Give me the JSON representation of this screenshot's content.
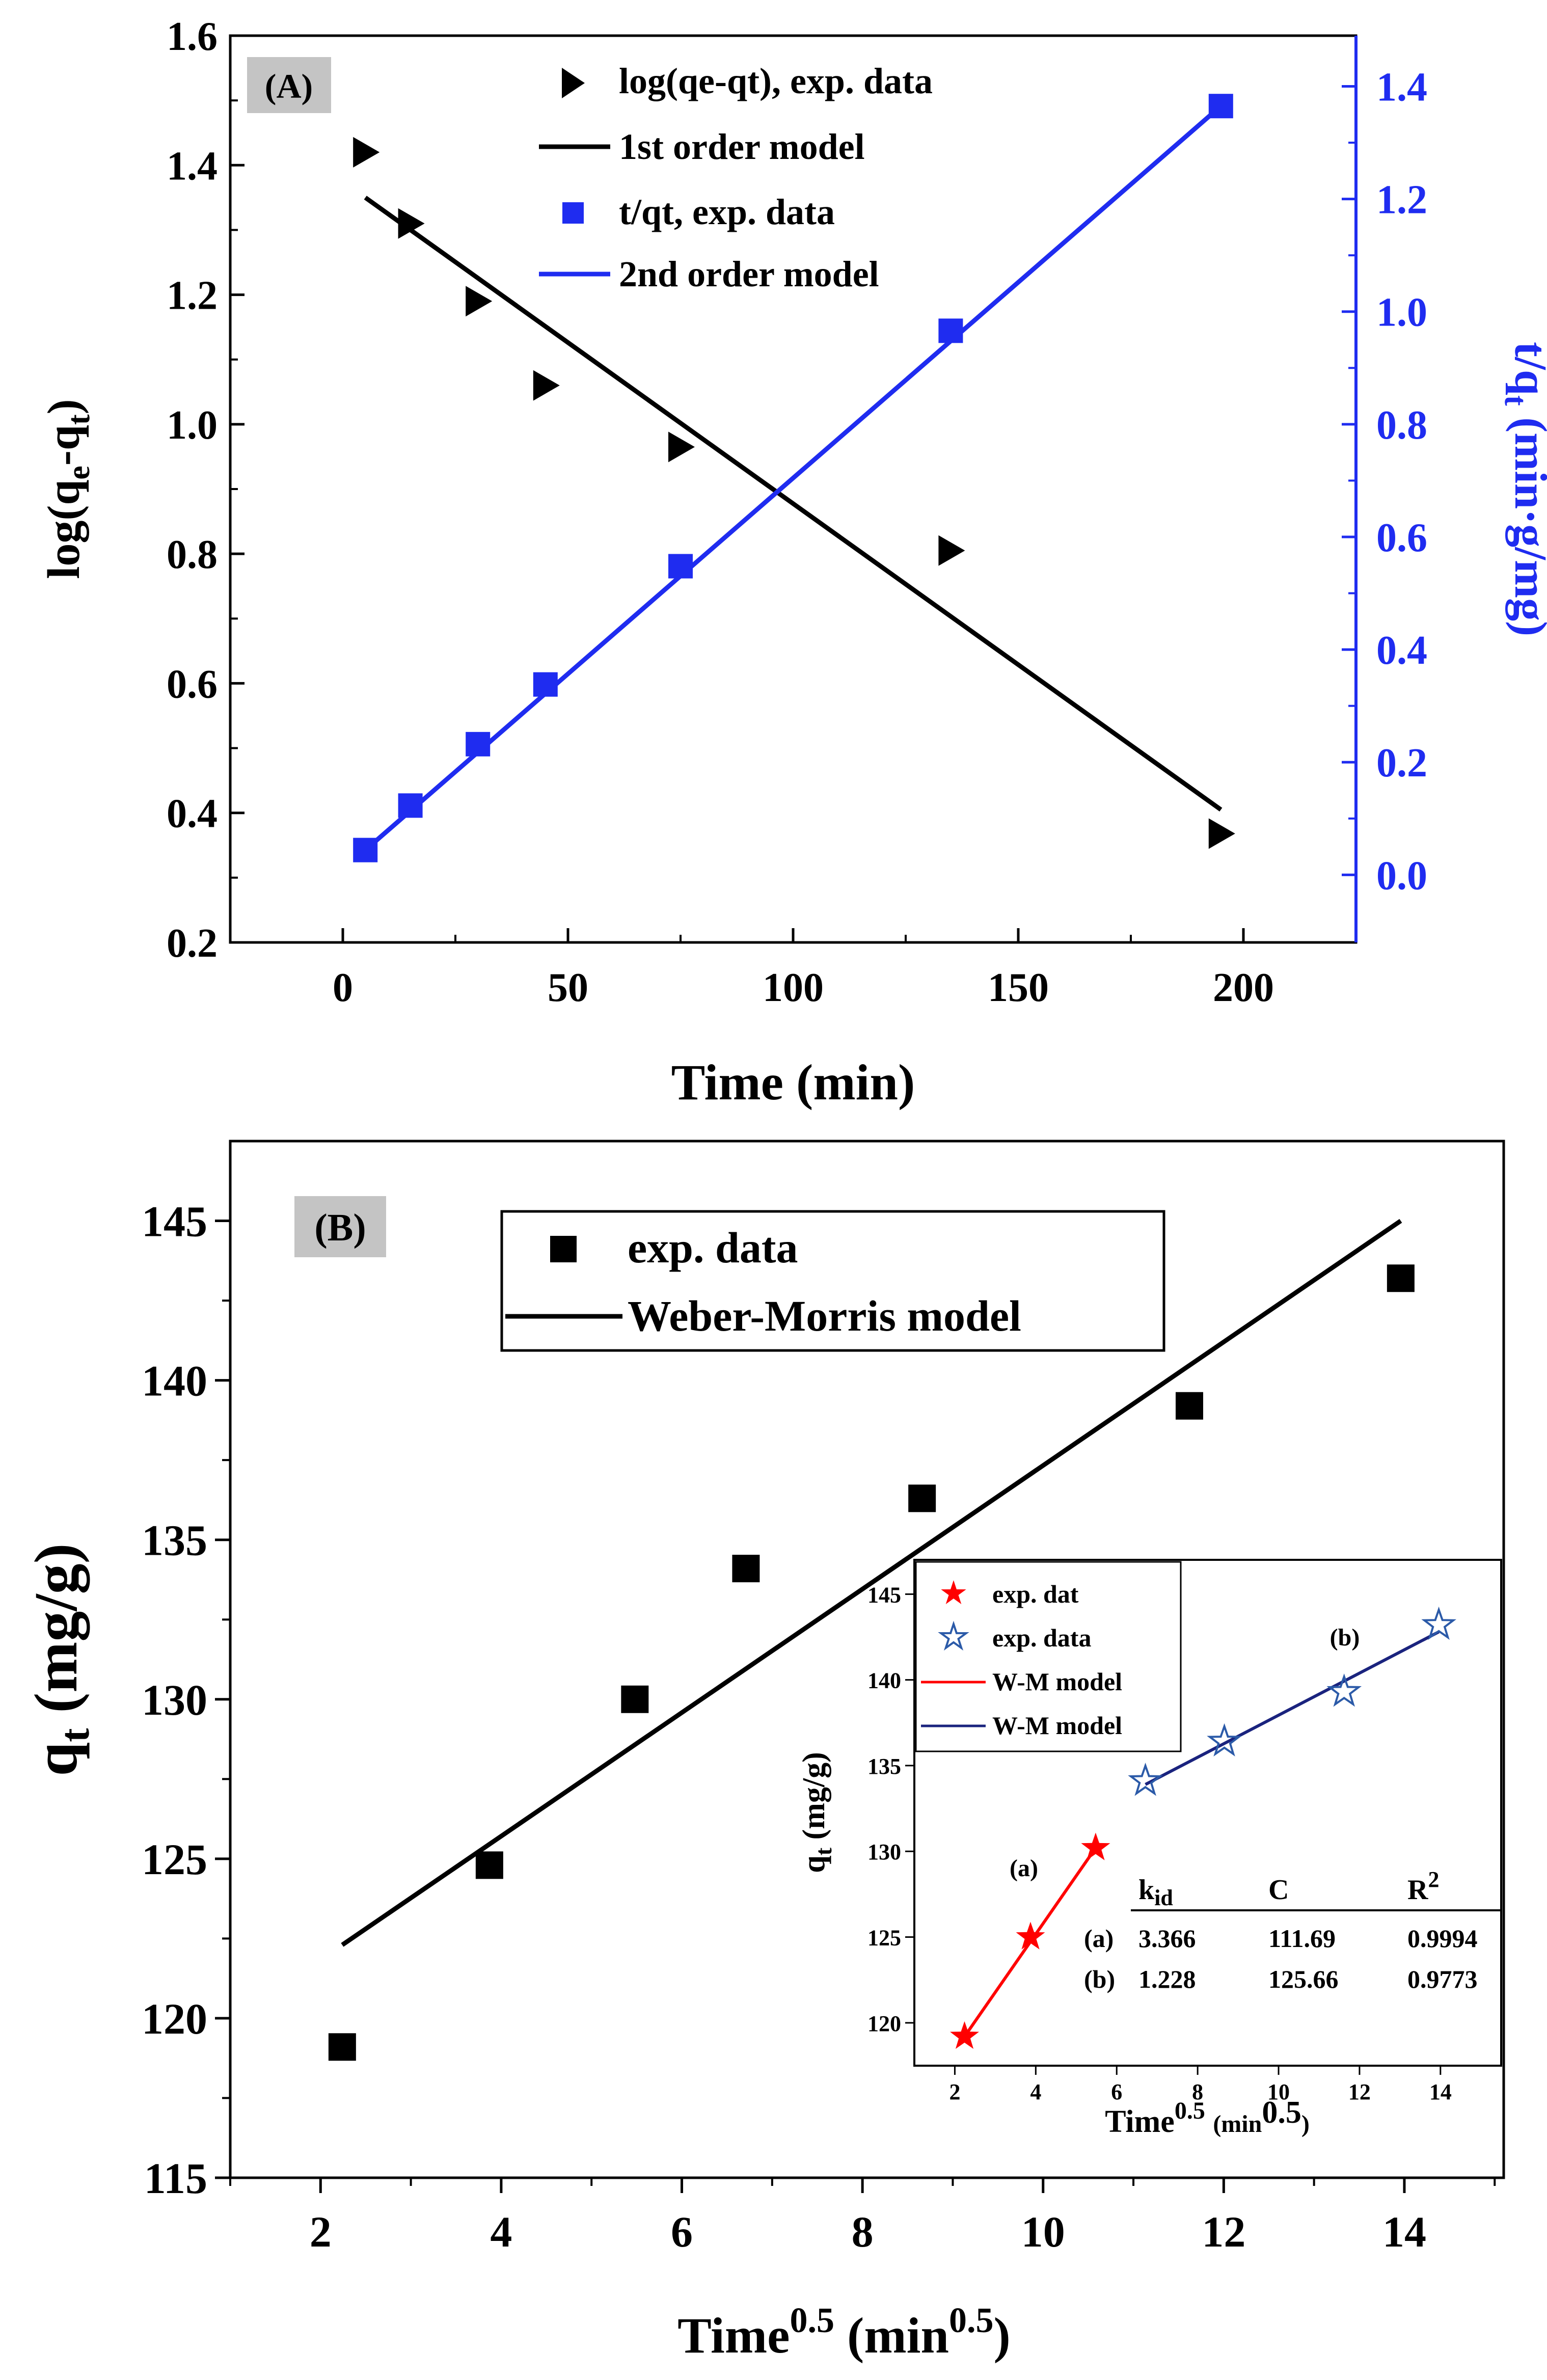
{
  "chart_data": [
    {
      "panel": "A",
      "type": "scatter",
      "panel_label": "(A)",
      "xlabel": "Time (min)",
      "ylabel_left": "log(qe-qt)",
      "ylabel_right": "t/qt (min·g/mg)",
      "xlim": [
        -25,
        225
      ],
      "ylim_left": [
        0.2,
        1.6
      ],
      "ylim_right": [
        -0.12,
        1.49
      ],
      "xticks": [
        0,
        50,
        100,
        150,
        200
      ],
      "yticks_left": [
        0.2,
        0.4,
        0.6,
        0.8,
        1.0,
        1.2,
        1.4,
        1.6
      ],
      "yticks_right": [
        0.0,
        0.2,
        0.4,
        0.6,
        0.8,
        1.0,
        1.2,
        1.4
      ],
      "xtick_labels": [
        "0",
        "50",
        "100",
        "150",
        "200"
      ],
      "ytick_labels_left": [
        "0.2",
        "0.4",
        "0.6",
        "0.8",
        "1.0",
        "1.2",
        "1.4",
        "1.6"
      ],
      "ytick_labels_right": [
        "0.0",
        "0.2",
        "0.4",
        "0.6",
        "0.8",
        "1.0",
        "1.2",
        "1.4"
      ],
      "legend": [
        "log(qe-qt), exp. data",
        "1st order model",
        "t/qt, exp. data",
        "2nd order model"
      ],
      "series": [
        {
          "name": "log(qe-qt), exp. data",
          "axis": "left",
          "marker": "triangle-right",
          "color": "#000000",
          "x": [
            5,
            15,
            30,
            45,
            75,
            135,
            195
          ],
          "y": [
            1.42,
            1.31,
            1.19,
            1.06,
            0.965,
            0.805,
            0.368
          ]
        },
        {
          "name": "1st order model",
          "axis": "left",
          "style": "line",
          "color": "#000000",
          "x": [
            5,
            195
          ],
          "y": [
            1.35,
            0.405
          ]
        },
        {
          "name": "t/qt, exp. data",
          "axis": "right",
          "marker": "square",
          "color": "#1f2cf0",
          "x": [
            5,
            15,
            30,
            45,
            75,
            135,
            195
          ],
          "y": [
            0.044,
            0.123,
            0.232,
            0.338,
            0.548,
            0.966,
            1.365
          ]
        },
        {
          "name": "2nd order model",
          "axis": "right",
          "style": "line",
          "color": "#1f2cf0",
          "x": [
            5,
            195
          ],
          "y": [
            0.044,
            1.365
          ]
        }
      ]
    },
    {
      "panel": "B",
      "type": "scatter",
      "panel_label": "(B)",
      "xlabel": "Time0.5 (min0.5)",
      "xlabel_main": "Time",
      "xlabel_exp": "0.5",
      "xlabel_unit_open": "(min",
      "xlabel_unit_exp": "0.5",
      "xlabel_unit_close": ")",
      "ylabel": "qt (mg/g)",
      "ylabel_main": "q",
      "ylabel_sub": "t",
      "ylabel_unit": "(mg/g)",
      "xlim": [
        1,
        15.1
      ],
      "ylim": [
        115,
        147.5
      ],
      "xticks": [
        2,
        4,
        6,
        8,
        10,
        12,
        14
      ],
      "yticks": [
        115,
        120,
        125,
        130,
        135,
        140,
        145
      ],
      "xtick_labels": [
        "2",
        "4",
        "6",
        "8",
        "10",
        "12",
        "14"
      ],
      "ytick_labels": [
        "115",
        "120",
        "125",
        "130",
        "135",
        "140",
        "145"
      ],
      "legend": [
        "exp. data",
        "Weber-Morris model"
      ],
      "series": [
        {
          "name": "exp. data",
          "marker": "square",
          "color": "#000000",
          "x": [
            2.24,
            3.87,
            5.48,
            6.71,
            8.66,
            11.62,
            13.96
          ],
          "y": [
            119.1,
            124.8,
            130.0,
            134.1,
            136.3,
            139.2,
            143.2
          ]
        },
        {
          "name": "Weber-Morris model",
          "style": "line",
          "color": "#000000",
          "x": [
            2.24,
            13.96
          ],
          "y": [
            122.3,
            145.0
          ]
        }
      ],
      "inset": {
        "type": "scatter",
        "xlabel": "Time0.5 (min0.5)",
        "xlabel_main": "Time",
        "xlabel_exp": "0.5",
        "xlabel_unit_open": "(min",
        "xlabel_unit_exp": "0.5",
        "xlabel_unit_close": ")",
        "ylabel": "qt (mg/g)",
        "ylabel_main": "q",
        "ylabel_sub": "t",
        "ylabel_unit": "(mg/g)",
        "xlim": [
          1,
          15.5
        ],
        "ylim": [
          117.5,
          147
        ],
        "xticks": [
          2,
          4,
          6,
          8,
          10,
          12,
          14
        ],
        "yticks": [
          120,
          125,
          130,
          135,
          140,
          145
        ],
        "xtick_labels": [
          "2",
          "4",
          "6",
          "8",
          "10",
          "12",
          "14"
        ],
        "ytick_labels": [
          "120",
          "125",
          "130",
          "135",
          "140",
          "145"
        ],
        "legend": [
          "exp. dat",
          "exp. data",
          "W-M model",
          "W-M model"
        ],
        "annotations": [
          "(a)",
          "(b)"
        ],
        "series": [
          {
            "name": "exp. dat",
            "marker": "star-filled",
            "color": "#ff0000",
            "x": [
              2.24,
              3.87,
              5.48
            ],
            "y": [
              119.2,
              125.0,
              130.2
            ]
          },
          {
            "name": "exp. data",
            "marker": "star-open",
            "color": "#2b5aa8",
            "x": [
              6.71,
              8.66,
              11.62,
              13.96
            ],
            "y": [
              134.1,
              136.4,
              139.3,
              143.2
            ]
          },
          {
            "name": "W-M model",
            "style": "line",
            "color": "#ff0000",
            "x": [
              2.24,
              5.48
            ],
            "y": [
              119.2,
              130.2
            ]
          },
          {
            "name": "W-M model",
            "style": "line",
            "color": "#1a237e",
            "x": [
              6.71,
              13.96
            ],
            "y": [
              133.9,
              142.8
            ]
          }
        ],
        "table": {
          "headers": [
            "",
            "kid",
            "C",
            "R2"
          ],
          "header_main": [
            "",
            "k",
            "C",
            "R"
          ],
          "header_script": [
            "",
            "id",
            "",
            "2"
          ],
          "rows": [
            [
              "(a)",
              "3.366",
              "111.69",
              "0.9994"
            ],
            [
              "(b)",
              "1.228",
              "125.66",
              "0.9773"
            ]
          ]
        }
      }
    }
  ]
}
